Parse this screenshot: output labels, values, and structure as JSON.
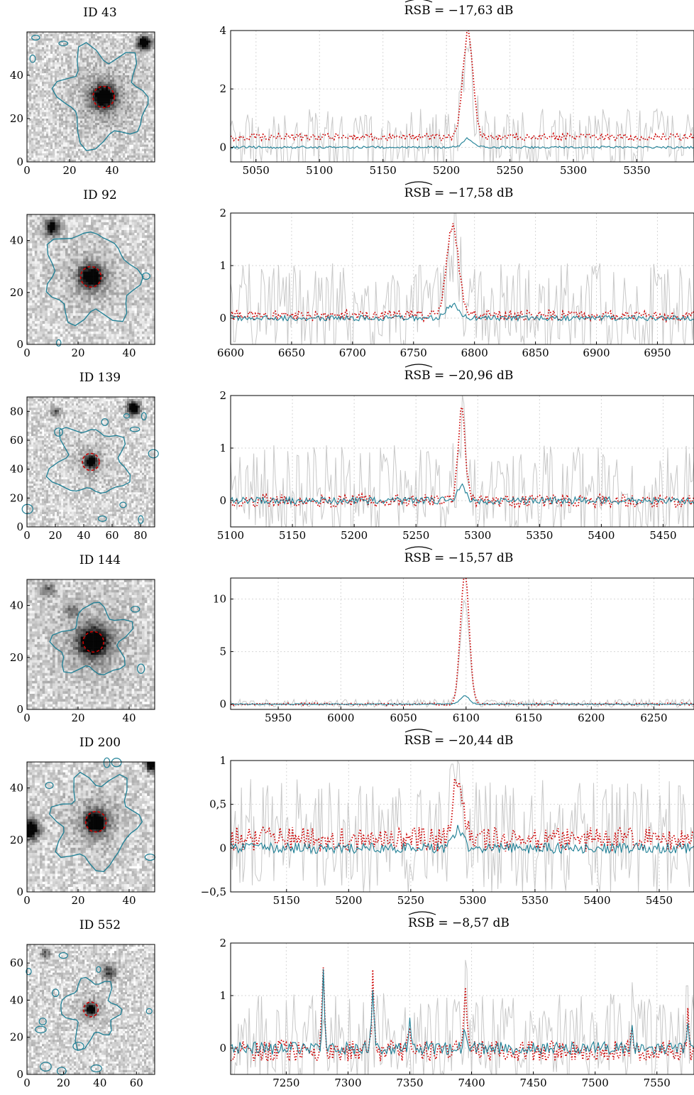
{
  "colors": {
    "observed": "#c8c8c8",
    "model": "#cc0000",
    "estimate": "#1d7f95",
    "contour": "#1d7f95",
    "aperture": "#cc0000"
  },
  "chart_data": [
    {
      "type": "line",
      "id_label": "ID 43",
      "rsb_prefix": "RSB",
      "rsb_value": "= −17,63 dB",
      "image_ticks": {
        "x": [
          "0",
          "20",
          "40"
        ],
        "y": [
          "0",
          "20",
          "40"
        ]
      },
      "image": {
        "size": 60,
        "source": [
          36,
          30,
          3.8
        ],
        "stars": [
          [
            55,
            55,
            2.2,
            1
          ]
        ],
        "contour_r": 20,
        "aperture_r": 5
      },
      "xlim": [
        5030,
        5395
      ],
      "ylim": [
        -0.5,
        4
      ],
      "xticks": [
        5050,
        5100,
        5150,
        5200,
        5250,
        5300,
        5350
      ],
      "xticklabels": [
        "5050",
        "5100",
        "5150",
        "5200",
        "5250",
        "5300",
        "5350"
      ],
      "yticks": [
        0,
        2,
        4
      ],
      "yticklabels": [
        "0",
        "2",
        "4"
      ],
      "line": {
        "center": 5217,
        "peak": 3.6,
        "width": 4,
        "est_peak": 0.3
      },
      "noise": {
        "obs": 1.0,
        "model": 0.12,
        "model_offset": 0.35,
        "est": 0.04
      },
      "series": [
        {
          "values_hint": "observed spectrum"
        },
        {
          "values_hint": "model"
        },
        {
          "values_hint": "estimate"
        }
      ]
    },
    {
      "type": "line",
      "id_label": "ID 92",
      "rsb_prefix": "RSB",
      "rsb_value": "= −17,58 dB",
      "image_ticks": {
        "x": [
          "0",
          "20",
          "40"
        ],
        "y": [
          "0",
          "20",
          "40"
        ]
      },
      "image": {
        "size": 50,
        "source": [
          25,
          26,
          3.0
        ],
        "stars": [
          [
            10,
            45,
            2.2,
            0.8
          ]
        ],
        "contour_r": 17,
        "aperture_r": 4
      },
      "xlim": [
        6600,
        6980
      ],
      "ylim": [
        -0.5,
        2
      ],
      "xticks": [
        6600,
        6650,
        6700,
        6750,
        6800,
        6850,
        6900,
        6950
      ],
      "xticklabels": [
        "6600",
        "6650",
        "6700",
        "6750",
        "6800",
        "6850",
        "6900",
        "6950"
      ],
      "yticks": [
        0,
        1,
        2
      ],
      "yticklabels": [
        "0",
        "1",
        "2"
      ],
      "line": {
        "center": 6782,
        "peak": 1.7,
        "width": 5,
        "est_peak": 0.25
      },
      "noise": {
        "obs": 0.8,
        "model": 0.1,
        "model_offset": 0.05,
        "est": 0.05
      }
    },
    {
      "type": "line",
      "id_label": "ID 139",
      "rsb_prefix": "RSB",
      "rsb_value": "= −20,96 dB",
      "image_ticks": {
        "x": [
          "0",
          "20",
          "40",
          "60",
          "80"
        ],
        "y": [
          "0",
          "20",
          "40",
          "60",
          "80"
        ]
      },
      "image": {
        "size": 90,
        "source": [
          45,
          45,
          3.0
        ],
        "stars": [
          [
            75,
            82,
            3.2,
            1
          ],
          [
            20,
            80,
            2.5,
            0.4
          ]
        ],
        "contour_r": 24,
        "aperture_r": 6
      },
      "xlim": [
        5100,
        5475
      ],
      "ylim": [
        -0.5,
        2
      ],
      "xticks": [
        5100,
        5150,
        5200,
        5250,
        5300,
        5350,
        5400,
        5450
      ],
      "xticklabels": [
        "5100",
        "5150",
        "5200",
        "5250",
        "5300",
        "5350",
        "5400",
        "5450"
      ],
      "yticks": [
        0,
        1,
        2
      ],
      "yticklabels": [
        "0",
        "1",
        "2"
      ],
      "line": {
        "center": 5287,
        "peak": 1.7,
        "width": 3,
        "est_peak": 0.3
      },
      "noise": {
        "obs": 0.8,
        "model": 0.12,
        "model_offset": 0.0,
        "est": 0.07
      }
    },
    {
      "type": "line",
      "id_label": "ID 144",
      "rsb_prefix": "RSB",
      "rsb_value": "= −15,57 dB",
      "image_ticks": {
        "x": [
          "0",
          "20",
          "40"
        ],
        "y": [
          "0",
          "20",
          "40"
        ]
      },
      "image": {
        "size": 50,
        "source": [
          26,
          26,
          4.0
        ],
        "stars": [
          [
            8,
            46,
            2,
            0.4
          ],
          [
            18,
            38,
            2,
            0.3
          ]
        ],
        "contour_r": 13,
        "aperture_r": 4
      },
      "xlim": [
        5912,
        6282
      ],
      "ylim": [
        -0.5,
        12
      ],
      "xticks": [
        5950,
        6000,
        6050,
        6100,
        6150,
        6200,
        6250
      ],
      "xticklabels": [
        "5950",
        "6000",
        "6050",
        "6100",
        "6150",
        "6200",
        "6250"
      ],
      "yticks": [
        0,
        5,
        10
      ],
      "yticklabels": [
        "0",
        "5",
        "10"
      ],
      "line": {
        "center": 6099,
        "peak": 12.5,
        "width": 3.5,
        "est_peak": 0.8
      },
      "noise": {
        "obs": 0.35,
        "model": 0.12,
        "model_offset": 0.0,
        "est": 0.05
      }
    },
    {
      "type": "line",
      "id_label": "ID 200",
      "rsb_prefix": "RSB",
      "rsb_value": "= −20,44 dB",
      "image_ticks": {
        "x": [
          "0",
          "20",
          "40"
        ],
        "y": [
          "0",
          "20",
          "40"
        ]
      },
      "image": {
        "size": 50,
        "source": [
          27,
          27,
          3.0
        ],
        "stars": [
          [
            1,
            24,
            2.6,
            1
          ],
          [
            49,
            49,
            1.8,
            1
          ]
        ],
        "contour_r": 16,
        "aperture_r": 4
      },
      "xlim": [
        5105,
        5478
      ],
      "ylim": [
        -0.5,
        1
      ],
      "xticks": [
        5150,
        5200,
        5250,
        5300,
        5350,
        5400,
        5450
      ],
      "xticklabels": [
        "5150",
        "5200",
        "5250",
        "5300",
        "5350",
        "5400",
        "5450"
      ],
      "yticks": [
        -0.5,
        0,
        0.5,
        1
      ],
      "yticklabels": [
        "−0,5",
        "0",
        "0,5",
        "1"
      ],
      "line": {
        "center": 5288,
        "peak": 0.7,
        "width": 4,
        "est_peak": 0.22
      },
      "noise": {
        "obs": 0.6,
        "model": 0.14,
        "model_offset": 0.1,
        "est": 0.06
      }
    },
    {
      "type": "line",
      "id_label": "ID 552",
      "rsb_prefix": "RSB",
      "rsb_value": "= −8,57 dB",
      "image_ticks": {
        "x": [
          "0",
          "20",
          "40",
          "60"
        ],
        "y": [
          "0",
          "20",
          "40",
          "60"
        ]
      },
      "image": {
        "size": 70,
        "source": [
          35,
          35,
          2.0
        ],
        "stars": [
          [
            45,
            55,
            3,
            0.5
          ],
          [
            10,
            65,
            2,
            0.4
          ]
        ],
        "contour_r": 15,
        "aperture_r": 4
      },
      "xlim": [
        7205,
        7580
      ],
      "ylim": [
        -0.5,
        2
      ],
      "xticks": [
        7250,
        7300,
        7350,
        7400,
        7450,
        7500,
        7550
      ],
      "xticklabels": [
        "7250",
        "7300",
        "7350",
        "7400",
        "7450",
        "7500",
        "7550"
      ],
      "yticks": [
        0,
        1,
        2
      ],
      "yticklabels": [
        "0",
        "1",
        "2"
      ],
      "line": {
        "center": 7395,
        "peak": 1.1,
        "width": 1.5,
        "est_peak": 0.35
      },
      "spikes": [
        [
          7280,
          1.7
        ],
        [
          7320,
          1.4
        ],
        [
          7350,
          0.6
        ],
        [
          7530,
          0.55
        ],
        [
          7575,
          0.7
        ]
      ],
      "noise": {
        "obs": 0.8,
        "model": 0.2,
        "model_offset": -0.05,
        "est": 0.12
      }
    }
  ]
}
